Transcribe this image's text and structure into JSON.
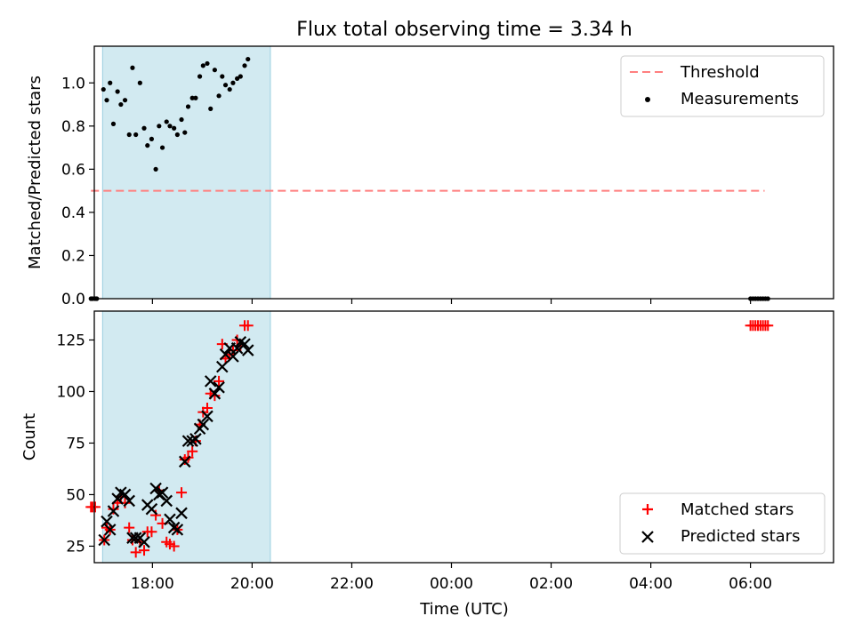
{
  "chart_data": {
    "title": "Flux total observing time = 3.34 h",
    "xlabel": "Time (UTC)",
    "x_ticks": [
      "18:00",
      "20:00",
      "22:00",
      "00:00",
      "02:00",
      "04:00",
      "06:00"
    ],
    "x_range": [
      "16:50",
      "07:40"
    ],
    "shaded_interval": {
      "start": "17:00",
      "end": "20:22",
      "color": "#add8e6"
    },
    "panels": [
      {
        "type": "scatter",
        "ylabel": "Matched/Predicted stars",
        "ylim": [
          0,
          1.17
        ],
        "y_ticks": [
          "0.0",
          "0.2",
          "0.4",
          "0.6",
          "0.8",
          "1.0"
        ],
        "legend_position": "upper right",
        "threshold": {
          "name": "Threshold",
          "value": 0.5,
          "x_start": "16:46",
          "x_end": "06:17",
          "color": "#ff7f7f"
        },
        "series": [
          {
            "name": "Measurements",
            "color": "#000000",
            "marker": "dot",
            "points": [
              [
                "16:46",
                0.0
              ],
              [
                "16:48",
                0.0
              ],
              [
                "16:51",
                0.0
              ],
              [
                "16:53",
                0.0
              ],
              [
                "17:01",
                0.97
              ],
              [
                "17:05",
                0.92
              ],
              [
                "17:09",
                1.0
              ],
              [
                "17:13",
                0.81
              ],
              [
                "17:18",
                0.96
              ],
              [
                "17:22",
                0.9
              ],
              [
                "17:27",
                0.92
              ],
              [
                "17:32",
                0.76
              ],
              [
                "17:36",
                1.07
              ],
              [
                "17:40",
                0.76
              ],
              [
                "17:45",
                1.0
              ],
              [
                "17:50",
                0.79
              ],
              [
                "17:54",
                0.71
              ],
              [
                "17:59",
                0.74
              ],
              [
                "18:04",
                0.6
              ],
              [
                "18:08",
                0.8
              ],
              [
                "18:12",
                0.7
              ],
              [
                "18:17",
                0.82
              ],
              [
                "18:21",
                0.8
              ],
              [
                "18:26",
                0.79
              ],
              [
                "18:30",
                0.76
              ],
              [
                "18:35",
                0.83
              ],
              [
                "18:39",
                0.77
              ],
              [
                "18:43",
                0.89
              ],
              [
                "18:48",
                0.93
              ],
              [
                "18:52",
                0.93
              ],
              [
                "18:57",
                1.03
              ],
              [
                "19:01",
                1.08
              ],
              [
                "19:06",
                1.09
              ],
              [
                "19:10",
                0.88
              ],
              [
                "19:15",
                1.06
              ],
              [
                "19:20",
                0.94
              ],
              [
                "19:24",
                1.03
              ],
              [
                "19:28",
                0.99
              ],
              [
                "19:33",
                0.97
              ],
              [
                "19:37",
                1.0
              ],
              [
                "19:42",
                1.02
              ],
              [
                "19:46",
                1.03
              ],
              [
                "19:51",
                1.08
              ],
              [
                "19:55",
                1.11
              ],
              [
                "06:00",
                0.0
              ],
              [
                "06:03",
                0.0
              ],
              [
                "06:06",
                0.0
              ],
              [
                "06:09",
                0.0
              ],
              [
                "06:12",
                0.0
              ],
              [
                "06:15",
                0.0
              ],
              [
                "06:18",
                0.0
              ],
              [
                "06:21",
                0.0
              ]
            ]
          }
        ]
      },
      {
        "type": "scatter",
        "ylabel": "Count",
        "ylim": [
          17,
          139
        ],
        "y_ticks": [
          "25",
          "50",
          "75",
          "100",
          "125"
        ],
        "legend_position": "lower right",
        "series": [
          {
            "name": "Matched stars",
            "color": "#ff0000",
            "marker": "plus",
            "points": [
              [
                "16:46",
                44
              ],
              [
                "16:48",
                44
              ],
              [
                "16:51",
                44
              ],
              [
                "17:02",
                28
              ],
              [
                "17:05",
                34
              ],
              [
                "17:09",
                33
              ],
              [
                "17:13",
                43
              ],
              [
                "17:18",
                46
              ],
              [
                "17:22",
                49
              ],
              [
                "17:27",
                46
              ],
              [
                "17:32",
                34
              ],
              [
                "17:36",
                28
              ],
              [
                "17:40",
                22
              ],
              [
                "17:45",
                27
              ],
              [
                "17:50",
                23
              ],
              [
                "17:54",
                32
              ],
              [
                "17:59",
                32
              ],
              [
                "18:04",
                40
              ],
              [
                "18:08",
                52
              ],
              [
                "18:12",
                36
              ],
              [
                "18:17",
                27
              ],
              [
                "18:21",
                26
              ],
              [
                "18:26",
                25
              ],
              [
                "18:30",
                33
              ],
              [
                "18:35",
                51
              ],
              [
                "18:39",
                67
              ],
              [
                "18:43",
                68
              ],
              [
                "18:48",
                71
              ],
              [
                "18:52",
                76
              ],
              [
                "18:57",
                84
              ],
              [
                "19:01",
                90
              ],
              [
                "19:06",
                92
              ],
              [
                "19:10",
                99
              ],
              [
                "19:15",
                98
              ],
              [
                "19:20",
                105
              ],
              [
                "19:24",
                123
              ],
              [
                "19:28",
                116
              ],
              [
                "19:33",
                118
              ],
              [
                "19:37",
                120
              ],
              [
                "19:42",
                125
              ],
              [
                "19:46",
                122
              ],
              [
                "19:51",
                132
              ],
              [
                "19:55",
                132
              ],
              [
                "06:00",
                132
              ],
              [
                "06:03",
                132
              ],
              [
                "06:06",
                132
              ],
              [
                "06:09",
                132
              ],
              [
                "06:12",
                132
              ],
              [
                "06:15",
                132
              ],
              [
                "06:18",
                132
              ],
              [
                "06:21",
                132
              ]
            ]
          },
          {
            "name": "Predicted stars",
            "color": "#000000",
            "marker": "x",
            "points": [
              [
                "17:02",
                28
              ],
              [
                "17:05",
                37
              ],
              [
                "17:09",
                33
              ],
              [
                "17:13",
                42
              ],
              [
                "17:18",
                48
              ],
              [
                "17:22",
                51
              ],
              [
                "17:27",
                50
              ],
              [
                "17:32",
                47
              ],
              [
                "17:36",
                29
              ],
              [
                "17:40",
                29
              ],
              [
                "17:45",
                29
              ],
              [
                "17:50",
                27
              ],
              [
                "17:54",
                45
              ],
              [
                "17:59",
                43
              ],
              [
                "18:04",
                53
              ],
              [
                "18:08",
                50
              ],
              [
                "18:12",
                51
              ],
              [
                "18:17",
                47
              ],
              [
                "18:21",
                38
              ],
              [
                "18:26",
                34
              ],
              [
                "18:30",
                33
              ],
              [
                "18:35",
                41
              ],
              [
                "18:39",
                66
              ],
              [
                "18:43",
                76
              ],
              [
                "18:48",
                76
              ],
              [
                "18:52",
                77
              ],
              [
                "18:57",
                82
              ],
              [
                "19:01",
                84
              ],
              [
                "19:06",
                88
              ],
              [
                "19:10",
                105
              ],
              [
                "19:15",
                99
              ],
              [
                "19:20",
                102
              ],
              [
                "19:24",
                112
              ],
              [
                "19:28",
                118
              ],
              [
                "19:33",
                121
              ],
              [
                "19:37",
                117
              ],
              [
                "19:42",
                121
              ],
              [
                "19:46",
                124
              ],
              [
                "19:51",
                123
              ],
              [
                "19:55",
                120
              ]
            ]
          }
        ]
      }
    ]
  }
}
